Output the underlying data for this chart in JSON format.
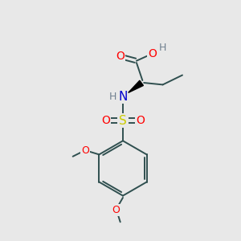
{
  "bg_color": "#e8e8e8",
  "atom_colors": {
    "O": "#ff0000",
    "N": "#0000cd",
    "S": "#cccc00",
    "H_gray": "#708090",
    "C": "#000000"
  },
  "bond_color": "#2f4f4f",
  "lw": 1.4
}
